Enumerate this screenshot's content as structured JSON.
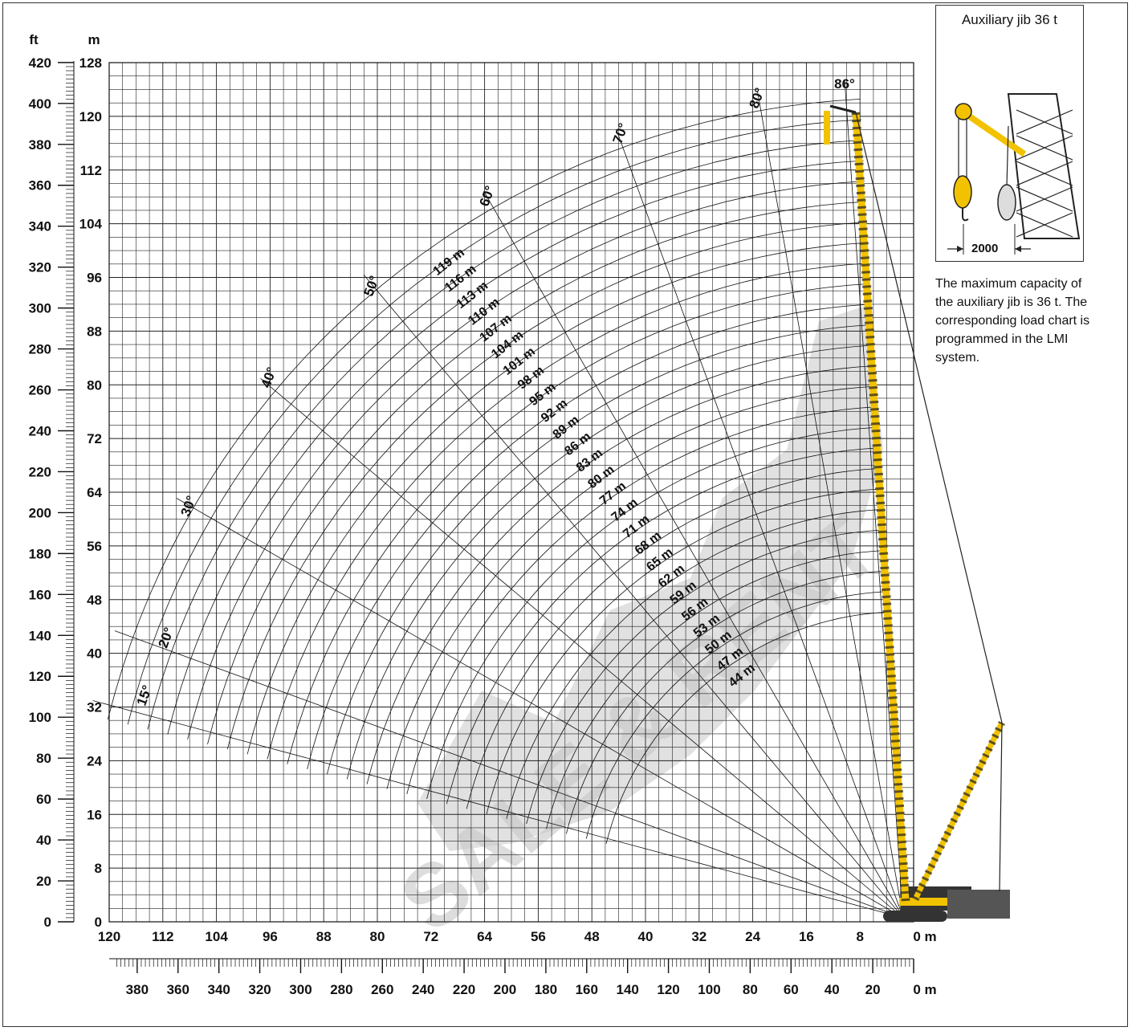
{
  "axes": {
    "ft_unit": "ft",
    "m_unit": "m",
    "ft_ticks": [
      "420",
      "400",
      "380",
      "360",
      "340",
      "320",
      "300",
      "280",
      "260",
      "240",
      "220",
      "200",
      "180",
      "160",
      "140",
      "120",
      "100",
      "80",
      "60",
      "40",
      "20",
      "0"
    ],
    "m_ticks": [
      "128",
      "120",
      "112",
      "104",
      "96",
      "88",
      "80",
      "72",
      "64",
      "56",
      "48",
      "40",
      "32",
      "24",
      "16",
      "8",
      "0"
    ],
    "radius_m_ticks": [
      "120",
      "112",
      "104",
      "96",
      "88",
      "80",
      "72",
      "64",
      "56",
      "48",
      "40",
      "32",
      "24",
      "16",
      "8"
    ],
    "radius_m_zero": "0 m",
    "radius_ft_ticks": [
      "380",
      "360",
      "340",
      "320",
      "300",
      "280",
      "260",
      "240",
      "220",
      "200",
      "180",
      "160",
      "140",
      "120",
      "100",
      "80",
      "60",
      "40",
      "20"
    ],
    "radius_ft_zero": "0 m"
  },
  "angle_labels": [
    "15°",
    "20°",
    "30°",
    "40°",
    "50°",
    "60°",
    "70°",
    "80°",
    "86°"
  ],
  "boom_lengths": [
    "119 m",
    "116 m",
    "113 m",
    "110 m",
    "107 m",
    "104 m",
    "101 m",
    "98 m",
    "95 m",
    "92 m",
    "89 m",
    "86 m",
    "83 m",
    "80 m",
    "77 m",
    "74 m",
    "71 m",
    "68 m",
    "65 m",
    "62 m",
    "59 m",
    "56 m",
    "53 m",
    "50 m",
    "47 m",
    "44 m"
  ],
  "watermark": "SALE & RENT",
  "jib": {
    "title": "Auxiliary jib 36 t",
    "dimension": "2000",
    "note": "The maximum capacity of the auxiliary jib is 36 t. The corresponding load chart is programmed in the LMI system."
  },
  "colors": {
    "crane": "#f2c200",
    "grid": "#222222",
    "watermark": "#c8c8c8"
  }
}
